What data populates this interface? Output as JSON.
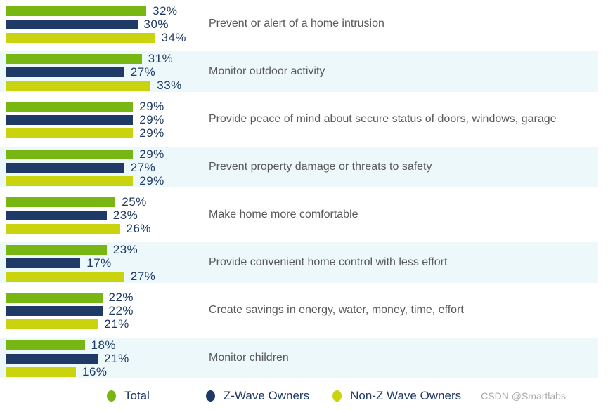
{
  "chart_data": {
    "type": "bar",
    "orientation": "horizontal",
    "title": "",
    "xlabel": "",
    "ylabel": "",
    "xlim": [
      0,
      40
    ],
    "grid": false,
    "legend_position": "bottom",
    "value_suffix": "%",
    "row_alt_background": "#ecf8fa",
    "categories": [
      "Prevent or alert of a home intrusion",
      "Monitor outdoor activity",
      "Provide peace of mind about secure status of doors, windows, garage",
      "Prevent property damage or threats to safety",
      "Make home more comfortable",
      "Provide convenient home control with less effort",
      "Create savings in energy, water, money, time, effort",
      "Monitor children"
    ],
    "series": [
      {
        "name": "Total",
        "color": "#78b713",
        "values": [
          32,
          31,
          29,
          29,
          25,
          23,
          22,
          18
        ]
      },
      {
        "name": "Z-Wave Owners",
        "color": "#1f3a66",
        "values": [
          30,
          27,
          29,
          27,
          23,
          17,
          22,
          21
        ]
      },
      {
        "name": "Non-Z Wave Owners",
        "color": "#c9d40e",
        "values": [
          34,
          33,
          29,
          29,
          26,
          27,
          21,
          16
        ]
      }
    ]
  },
  "colors": {
    "value_label": "#1f3a66",
    "category_label": "#595959",
    "legend_label": "#1f3a66",
    "alt_row_background": "#ecf8fa",
    "watermark": "#a9a9a9"
  },
  "watermark": "CSDN @Smartlabs"
}
